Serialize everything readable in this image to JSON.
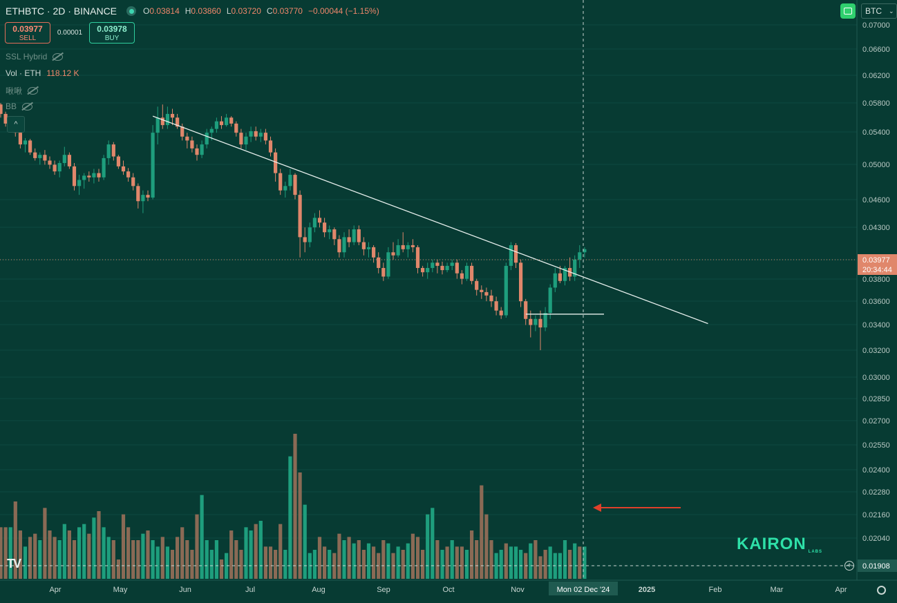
{
  "header": {
    "symbol": "ETHBTC · 2D · BINANCE",
    "ohlc": [
      {
        "k": "O",
        "v": "0.03814"
      },
      {
        "k": "H",
        "v": "0.03860"
      },
      {
        "k": "L",
        "v": "0.03720"
      },
      {
        "k": "C",
        "v": "0.03770"
      }
    ],
    "change": "−0.00044 (−1.15%)"
  },
  "trade": {
    "sell_price": "0.03977",
    "sell_label": "SELL",
    "spread": "0.00001",
    "buy_price": "0.03978",
    "buy_label": "BUY"
  },
  "indicators": {
    "ssl": "SSL Hybrid",
    "vol_label": "Vol · ETH",
    "vol_value": "118.12 K",
    "custom": "啾啾",
    "bb": "BB"
  },
  "toolbar": {
    "currency": "BTC",
    "collapse_glyph": "^"
  },
  "brand": {
    "tv_logo": "TV",
    "watermark": "KAIRON",
    "watermark_sub": "LABS"
  },
  "colors": {
    "background": "#073b33",
    "up": "#1e9e7d",
    "down": "#e0876b",
    "vol_up": "#1e9e7d",
    "vol_down": "#8a6a55",
    "trendline": "#e8f0ee",
    "arrow": "#e0402a"
  },
  "chart_data": {
    "type": "candlestick",
    "y_scale": "log",
    "y_ticks": [
      "0.07000",
      "0.06600",
      "0.06200",
      "0.05800",
      "0.05400",
      "0.05000",
      "0.04600",
      "0.04300",
      "0.03977",
      "0.03800",
      "0.03600",
      "0.03400",
      "0.03200",
      "0.03000",
      "0.02850",
      "0.02700",
      "0.02550",
      "0.02400",
      "0.02280",
      "0.02160",
      "0.02040",
      "0.01908"
    ],
    "last_price": "0.03977",
    "countdown": "20:34:44",
    "crosshair_price": "0.01908",
    "crosshair_date": "Mon 02 Dec '24",
    "x_ticks": [
      "Apr",
      "May",
      "Jun",
      "Jul",
      "Aug",
      "Sep",
      "Oct",
      "Nov",
      "2025",
      "Feb",
      "Mar",
      "Apr"
    ],
    "candles": [
      [
        0.0578,
        0.058,
        0.056,
        0.0565
      ],
      [
        0.0565,
        0.0568,
        0.0548,
        0.0552
      ],
      [
        0.0552,
        0.0562,
        0.0545,
        0.0555
      ],
      [
        0.0555,
        0.0558,
        0.0535,
        0.054
      ],
      [
        0.054,
        0.0545,
        0.052,
        0.0525
      ],
      [
        0.0525,
        0.0533,
        0.0515,
        0.053
      ],
      [
        0.053,
        0.0532,
        0.0512,
        0.0515
      ],
      [
        0.0515,
        0.052,
        0.0505,
        0.0508
      ],
      [
        0.0508,
        0.0515,
        0.05,
        0.0512
      ],
      [
        0.0512,
        0.0518,
        0.05,
        0.0505
      ],
      [
        0.0505,
        0.051,
        0.0495,
        0.05
      ],
      [
        0.05,
        0.0505,
        0.0488,
        0.0492
      ],
      [
        0.0492,
        0.0505,
        0.0485,
        0.0502
      ],
      [
        0.0502,
        0.0522,
        0.0498,
        0.0512
      ],
      [
        0.0512,
        0.0515,
        0.0495,
        0.0498
      ],
      [
        0.0498,
        0.0502,
        0.047,
        0.0475
      ],
      [
        0.0475,
        0.0488,
        0.0465,
        0.0482
      ],
      [
        0.0482,
        0.049,
        0.0472,
        0.0487
      ],
      [
        0.0487,
        0.0492,
        0.048,
        0.0485
      ],
      [
        0.0485,
        0.0495,
        0.0478,
        0.049
      ],
      [
        0.049,
        0.0495,
        0.048,
        0.0485
      ],
      [
        0.0485,
        0.0512,
        0.0482,
        0.0508
      ],
      [
        0.0508,
        0.053,
        0.05,
        0.0525
      ],
      [
        0.0525,
        0.0528,
        0.0505,
        0.051
      ],
      [
        0.051,
        0.0512,
        0.0495,
        0.0498
      ],
      [
        0.0498,
        0.0505,
        0.0488,
        0.0492
      ],
      [
        0.0492,
        0.0496,
        0.048,
        0.0485
      ],
      [
        0.0485,
        0.049,
        0.047,
        0.0475
      ],
      [
        0.0475,
        0.0478,
        0.045,
        0.0458
      ],
      [
        0.0458,
        0.047,
        0.0445,
        0.0465
      ],
      [
        0.0465,
        0.047,
        0.0458,
        0.0462
      ],
      [
        0.0462,
        0.055,
        0.046,
        0.054
      ],
      [
        0.054,
        0.0575,
        0.0525,
        0.056
      ],
      [
        0.056,
        0.0578,
        0.0545,
        0.055
      ],
      [
        0.055,
        0.0575,
        0.0545,
        0.0565
      ],
      [
        0.0565,
        0.0572,
        0.055,
        0.056
      ],
      [
        0.056,
        0.0565,
        0.0545,
        0.0548
      ],
      [
        0.0548,
        0.0552,
        0.053,
        0.0535
      ],
      [
        0.0535,
        0.054,
        0.052,
        0.053
      ],
      [
        0.053,
        0.0535,
        0.0515,
        0.052
      ],
      [
        0.052,
        0.0525,
        0.0505,
        0.0512
      ],
      [
        0.0512,
        0.053,
        0.0508,
        0.0525
      ],
      [
        0.0525,
        0.0545,
        0.052,
        0.054
      ],
      [
        0.054,
        0.0548,
        0.053,
        0.0545
      ],
      [
        0.0545,
        0.056,
        0.054,
        0.0555
      ],
      [
        0.0555,
        0.0562,
        0.0545,
        0.055
      ],
      [
        0.055,
        0.0565,
        0.0548,
        0.056
      ],
      [
        0.056,
        0.0562,
        0.0548,
        0.0552
      ],
      [
        0.0552,
        0.0555,
        0.0535,
        0.054
      ],
      [
        0.054,
        0.0545,
        0.052,
        0.0525
      ],
      [
        0.0525,
        0.054,
        0.0518,
        0.0535
      ],
      [
        0.0535,
        0.0548,
        0.0528,
        0.0542
      ],
      [
        0.0542,
        0.0548,
        0.053,
        0.0535
      ],
      [
        0.0535,
        0.0545,
        0.0528,
        0.054
      ],
      [
        0.054,
        0.0545,
        0.0525,
        0.053
      ],
      [
        0.053,
        0.0535,
        0.051,
        0.0515
      ],
      [
        0.0515,
        0.052,
        0.048,
        0.049
      ],
      [
        0.049,
        0.0495,
        0.0465,
        0.047
      ],
      [
        0.047,
        0.048,
        0.0462,
        0.0475
      ],
      [
        0.0475,
        0.0495,
        0.047,
        0.0488
      ],
      [
        0.0488,
        0.049,
        0.046,
        0.0465
      ],
      [
        0.0465,
        0.047,
        0.04,
        0.042
      ],
      [
        0.042,
        0.043,
        0.0405,
        0.0415
      ],
      [
        0.0415,
        0.0435,
        0.041,
        0.043
      ],
      [
        0.043,
        0.0445,
        0.0425,
        0.044
      ],
      [
        0.044,
        0.0448,
        0.043,
        0.0435
      ],
      [
        0.0435,
        0.044,
        0.042,
        0.0425
      ],
      [
        0.0425,
        0.0432,
        0.0418,
        0.0428
      ],
      [
        0.0428,
        0.043,
        0.0412,
        0.0418
      ],
      [
        0.0418,
        0.0422,
        0.04,
        0.0405
      ],
      [
        0.0405,
        0.0425,
        0.04,
        0.042
      ],
      [
        0.042,
        0.0428,
        0.041,
        0.0415
      ],
      [
        0.0415,
        0.0432,
        0.0412,
        0.0428
      ],
      [
        0.0428,
        0.0432,
        0.0412,
        0.0415
      ],
      [
        0.0415,
        0.042,
        0.0402,
        0.0408
      ],
      [
        0.0408,
        0.0415,
        0.04,
        0.041
      ],
      [
        0.041,
        0.0412,
        0.0395,
        0.04
      ],
      [
        0.04,
        0.0405,
        0.0385,
        0.039
      ],
      [
        0.039,
        0.0395,
        0.0378,
        0.0382
      ],
      [
        0.0382,
        0.041,
        0.038,
        0.0405
      ],
      [
        0.0405,
        0.0415,
        0.0398,
        0.0402
      ],
      [
        0.0402,
        0.0418,
        0.04,
        0.0412
      ],
      [
        0.0412,
        0.0425,
        0.0405,
        0.0408
      ],
      [
        0.0408,
        0.0415,
        0.04,
        0.0412
      ],
      [
        0.0412,
        0.0418,
        0.0405,
        0.041
      ],
      [
        0.041,
        0.0412,
        0.0385,
        0.039
      ],
      [
        0.039,
        0.0392,
        0.0382,
        0.0386
      ],
      [
        0.0386,
        0.0395,
        0.038,
        0.039
      ],
      [
        0.039,
        0.0398,
        0.0386,
        0.0395
      ],
      [
        0.0395,
        0.0398,
        0.0385,
        0.0392
      ],
      [
        0.0392,
        0.0396,
        0.0384,
        0.0388
      ],
      [
        0.0388,
        0.0395,
        0.0386,
        0.0392
      ],
      [
        0.0392,
        0.0398,
        0.0388,
        0.0395
      ],
      [
        0.0395,
        0.0398,
        0.038,
        0.0385
      ],
      [
        0.0385,
        0.0388,
        0.0375,
        0.038
      ],
      [
        0.038,
        0.0395,
        0.0378,
        0.0392
      ],
      [
        0.0392,
        0.0395,
        0.0375,
        0.0378
      ],
      [
        0.0378,
        0.038,
        0.0365,
        0.037
      ],
      [
        0.037,
        0.0374,
        0.0362,
        0.0368
      ],
      [
        0.0368,
        0.0372,
        0.036,
        0.0365
      ],
      [
        0.0365,
        0.037,
        0.0355,
        0.036
      ],
      [
        0.036,
        0.0364,
        0.0348,
        0.0352
      ],
      [
        0.0352,
        0.0355,
        0.0345,
        0.0348
      ],
      [
        0.0348,
        0.0395,
        0.0346,
        0.0392
      ],
      [
        0.0392,
        0.0415,
        0.0388,
        0.0412
      ],
      [
        0.0412,
        0.0414,
        0.039,
        0.0395
      ],
      [
        0.0395,
        0.0398,
        0.0355,
        0.036
      ],
      [
        0.036,
        0.0362,
        0.034,
        0.0345
      ],
      [
        0.0345,
        0.0352,
        0.033,
        0.034
      ],
      [
        0.034,
        0.0348,
        0.0335,
        0.0345
      ],
      [
        0.0345,
        0.0352,
        0.032,
        0.0338
      ],
      [
        0.0338,
        0.0355,
        0.0335,
        0.035
      ],
      [
        0.035,
        0.0375,
        0.0345,
        0.0372
      ],
      [
        0.0372,
        0.039,
        0.0368,
        0.0385
      ],
      [
        0.0385,
        0.0392,
        0.0376,
        0.0378
      ],
      [
        0.0378,
        0.0392,
        0.0374,
        0.039
      ],
      [
        0.039,
        0.04,
        0.0378,
        0.0382
      ],
      [
        0.0382,
        0.0402,
        0.0378,
        0.0398
      ],
      [
        0.0398,
        0.0412,
        0.039,
        0.0405
      ],
      [
        0.0405,
        0.041,
        0.04,
        0.0408
      ]
    ],
    "volume": [
      0.16,
      0.16,
      0.16,
      0.24,
      0.15,
      0.1,
      0.13,
      0.14,
      0.12,
      0.22,
      0.15,
      0.13,
      0.12,
      0.17,
      0.15,
      0.12,
      0.16,
      0.17,
      0.14,
      0.19,
      0.21,
      0.16,
      0.13,
      0.12,
      0.06,
      0.2,
      0.16,
      0.12,
      0.12,
      0.14,
      0.15,
      0.12,
      0.1,
      0.13,
      0.1,
      0.09,
      0.13,
      0.16,
      0.12,
      0.09,
      0.2,
      0.26,
      0.12,
      0.09,
      0.12,
      0.06,
      0.08,
      0.15,
      0.12,
      0.09,
      0.16,
      0.15,
      0.17,
      0.18,
      0.1,
      0.1,
      0.09,
      0.17,
      0.09,
      0.38,
      0.45,
      0.33,
      0.23,
      0.08,
      0.09,
      0.13,
      0.1,
      0.09,
      0.08,
      0.14,
      0.12,
      0.13,
      0.11,
      0.12,
      0.09,
      0.11,
      0.1,
      0.08,
      0.12,
      0.11,
      0.08,
      0.1,
      0.09,
      0.11,
      0.14,
      0.13,
      0.09,
      0.2,
      0.22,
      0.12,
      0.09,
      0.1,
      0.12,
      0.1,
      0.1,
      0.09,
      0.15,
      0.12,
      0.29,
      0.2,
      0.12,
      0.08,
      0.09,
      0.11,
      0.1,
      0.1,
      0.09,
      0.08,
      0.11,
      0.12,
      0.07,
      0.09,
      0.1,
      0.08,
      0.08,
      0.12,
      0.09,
      0.11,
      0.1,
      0.1
    ],
    "volume_up": [
      0,
      0,
      1,
      0,
      0,
      1,
      0,
      0,
      1,
      0,
      0,
      0,
      1,
      1,
      0,
      0,
      1,
      1,
      0,
      1,
      0,
      1,
      1,
      0,
      0,
      0,
      0,
      0,
      0,
      1,
      0,
      1,
      1,
      0,
      1,
      0,
      0,
      0,
      0,
      0,
      0,
      1,
      1,
      1,
      1,
      0,
      1,
      0,
      0,
      0,
      1,
      1,
      0,
      1,
      0,
      0,
      0,
      0,
      1,
      1,
      0,
      0,
      1,
      1,
      1,
      0,
      0,
      1,
      0,
      0,
      1,
      0,
      1,
      0,
      0,
      1,
      0,
      0,
      0,
      1,
      0,
      1,
      0,
      1,
      0,
      0,
      0,
      1,
      1,
      0,
      1,
      0,
      1,
      0,
      0,
      1,
      0,
      0,
      0,
      0,
      0,
      1,
      1,
      0,
      1,
      1,
      1,
      0,
      1,
      0,
      0,
      0,
      1,
      1,
      1,
      1,
      0,
      1,
      0,
      1
    ],
    "trendline": {
      "from": {
        "i": 31,
        "price": 0.0562
      },
      "to": {
        "i": 185,
        "price": 0.0344
      }
    },
    "support_line": {
      "from_i": 100,
      "to_i": 115,
      "price": 0.0349
    },
    "crosshair_index": 109
  }
}
